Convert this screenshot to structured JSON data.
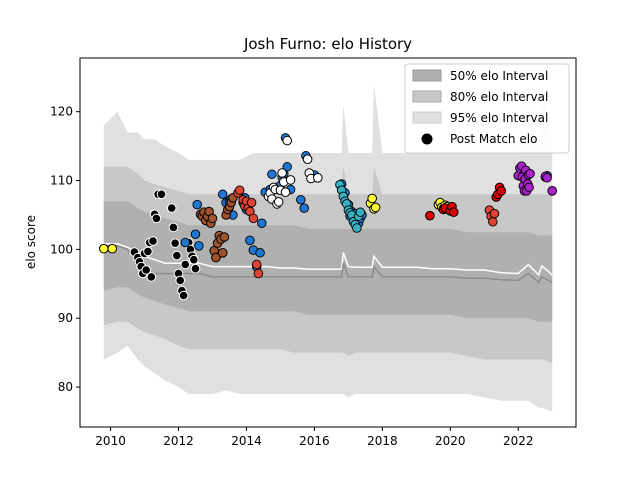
{
  "chart_data": {
    "type": "scatter",
    "title": "Josh Furno: elo History",
    "xlabel": "",
    "ylabel": "elo score",
    "xlim": [
      2009.1,
      2023.7
    ],
    "ylim": [
      74.2,
      127.8
    ],
    "x_ticks": [
      2010,
      2012,
      2014,
      2016,
      2018,
      2020,
      2022
    ],
    "y_ticks": [
      80,
      90,
      100,
      110,
      120
    ],
    "grid": false,
    "legend_position": "top-right",
    "legend": [
      {
        "label": "50% elo Interval",
        "kind": "band",
        "color": "#b0b0b0"
      },
      {
        "label": "80% elo Interval",
        "kind": "band",
        "color": "#c8c8c8"
      },
      {
        "label": "95% elo Interval",
        "kind": "band",
        "color": "#e0e0e0"
      },
      {
        "label": "Post Match elo",
        "kind": "marker",
        "color": "#000000"
      }
    ],
    "bands": {
      "x": [
        2009.8,
        2010.2,
        2010.5,
        2010.8,
        2011.0,
        2011.3,
        2011.6,
        2012.0,
        2012.3,
        2012.6,
        2013.0,
        2013.4,
        2013.8,
        2014.2,
        2014.6,
        2015.0,
        2015.4,
        2015.8,
        2016.2,
        2016.6,
        2016.8,
        2016.85,
        2017.0,
        2017.2,
        2017.4,
        2017.7,
        2017.75,
        2018.0,
        2018.5,
        2019.0,
        2019.5,
        2020.0,
        2020.5,
        2021.0,
        2021.5,
        2022.0,
        2022.3,
        2022.6,
        2022.7,
        2023.0
      ],
      "p95_lower": [
        84,
        85,
        86,
        84,
        83,
        82,
        81,
        80,
        79,
        79,
        79,
        79.5,
        79,
        79,
        79,
        79,
        79,
        79,
        79,
        79,
        79,
        79,
        78.5,
        79,
        79,
        79,
        79,
        79,
        79,
        79,
        79,
        79,
        79,
        78.5,
        78,
        78,
        78,
        77,
        77,
        76.5
      ],
      "p95_upper": [
        118,
        120,
        117,
        117,
        116,
        116,
        115,
        114,
        113,
        113,
        113,
        113,
        113,
        114,
        114,
        114,
        114,
        114,
        114,
        114,
        114,
        121,
        114,
        114,
        114,
        114,
        124,
        114,
        114,
        114,
        114,
        114,
        114,
        114,
        114,
        114,
        121,
        114,
        124,
        116
      ],
      "p80_lower": [
        89,
        89.5,
        89.5,
        88.5,
        88,
        87.5,
        87,
        86,
        85.5,
        85.5,
        85.5,
        85.5,
        85.5,
        85.5,
        85.5,
        85.5,
        85,
        85,
        85,
        85,
        85,
        85,
        84.5,
        85,
        85,
        85,
        85,
        85,
        85,
        85,
        85,
        85,
        84.5,
        84,
        84,
        84,
        84,
        84,
        84,
        83.5
      ],
      "p80_upper": [
        112,
        112,
        112,
        111,
        110,
        109.5,
        109,
        108.5,
        108,
        108,
        108,
        108,
        108,
        108,
        108,
        108,
        108,
        108,
        108,
        108,
        108,
        112,
        108,
        108,
        108,
        108,
        112,
        108,
        108,
        108,
        108,
        108,
        108,
        108,
        108,
        108,
        108,
        108,
        108,
        108
      ],
      "p50_lower": [
        94,
        94.5,
        94.5,
        93.5,
        93,
        92.5,
        92,
        91.5,
        91,
        91,
        91,
        91,
        91,
        91,
        91,
        91,
        91,
        90.5,
        90.5,
        90.5,
        90.5,
        90.5,
        90.5,
        90.5,
        90.5,
        90.5,
        90.5,
        90.5,
        90.5,
        90.5,
        90.5,
        90.5,
        90,
        90,
        90,
        90,
        90,
        89.5,
        89.5,
        89.5
      ],
      "p50_upper": [
        107,
        107,
        107,
        106,
        105.5,
        105,
        104.5,
        104,
        103.5,
        103.5,
        103.5,
        103.5,
        103.5,
        103.5,
        103.5,
        103.5,
        103.5,
        103,
        103,
        103,
        103,
        103,
        103,
        103,
        103,
        103,
        103,
        103,
        103,
        103,
        103,
        103,
        102.5,
        102.5,
        102.5,
        102.5,
        102.5,
        102,
        102,
        102
      ]
    },
    "lines": [
      {
        "color": "#ffffff",
        "width": 1.5,
        "x": [
          2009.8,
          2010.2,
          2010.5,
          2010.8,
          2011.0,
          2011.3,
          2011.6,
          2012.0,
          2012.3,
          2012.6,
          2013.0,
          2013.4,
          2013.8,
          2014.2,
          2014.6,
          2015.0,
          2015.4,
          2015.8,
          2016.2,
          2016.6,
          2016.8,
          2016.85,
          2017.0,
          2017.2,
          2017.4,
          2017.7,
          2017.75,
          2018.0,
          2018.5,
          2019.0,
          2019.5,
          2020.0,
          2020.5,
          2021.0,
          2021.5,
          2022.0,
          2022.3,
          2022.6,
          2022.7,
          2023.0
        ],
        "y": [
          100.8,
          100.8,
          100.3,
          99.5,
          99.0,
          98.5,
          98.0,
          98.0,
          98.0,
          98.0,
          97.5,
          97.5,
          97.5,
          97.5,
          97.5,
          97.3,
          97.3,
          97.1,
          97.1,
          97.1,
          97.1,
          99.5,
          97.5,
          97.4,
          97.4,
          97.4,
          99.0,
          97.4,
          97.4,
          97.4,
          97.2,
          97.2,
          97.0,
          97.0,
          96.6,
          96.5,
          97.8,
          96.3,
          97.6,
          96.3
        ]
      },
      {
        "color": "#8c8c8c",
        "width": 1.5,
        "x": [
          2009.8,
          2010.2,
          2010.5,
          2010.8,
          2011.0,
          2011.3,
          2011.6,
          2012.0,
          2012.3,
          2012.6,
          2013.0,
          2013.4,
          2013.8,
          2014.2,
          2014.6,
          2015.0,
          2015.4,
          2015.8,
          2016.2,
          2016.6,
          2016.8,
          2016.85,
          2017.0,
          2017.2,
          2017.4,
          2017.7,
          2017.75,
          2018.0,
          2018.5,
          2019.0,
          2019.5,
          2020.0,
          2020.5,
          2021.0,
          2021.5,
          2022.0,
          2022.3,
          2022.6,
          2022.7,
          2023.0
        ],
        "y": [
          100.5,
          100.5,
          100.0,
          98.0,
          97.0,
          96.5,
          96.5,
          96.5,
          96.5,
          96.5,
          96.0,
          96.0,
          96.0,
          96.0,
          96.0,
          96.0,
          96.0,
          96.0,
          96.0,
          96.0,
          96.0,
          98.0,
          96.0,
          96.0,
          96.0,
          96.0,
          97.5,
          96.0,
          96.0,
          96.0,
          96.0,
          96.0,
          95.8,
          95.8,
          95.6,
          95.5,
          96.5,
          95.2,
          96.0,
          95.2
        ]
      }
    ],
    "series": [
      {
        "fill": "#ffff33",
        "points": [
          [
            2009.8,
            100.1
          ],
          [
            2010.05,
            100.1
          ]
        ]
      },
      {
        "fill": "#000000",
        "points": [
          [
            2010.7,
            99.6
          ],
          [
            2010.8,
            98.8
          ],
          [
            2010.85,
            98.2
          ],
          [
            2010.9,
            97.5
          ],
          [
            2010.95,
            96.5
          ],
          [
            2011.0,
            99.4
          ],
          [
            2011.05,
            97.0
          ],
          [
            2011.1,
            99.7
          ],
          [
            2011.15,
            101.0
          ],
          [
            2011.2,
            96.0
          ],
          [
            2011.25,
            101.2
          ],
          [
            2011.3,
            105.1
          ],
          [
            2011.35,
            104.5
          ],
          [
            2011.4,
            108.0
          ],
          [
            2011.5,
            108.0
          ],
          [
            2011.8,
            106.0
          ],
          [
            2011.85,
            103.2
          ],
          [
            2011.9,
            100.9
          ],
          [
            2011.95,
            99.1
          ],
          [
            2012.0,
            96.5
          ],
          [
            2012.05,
            95.5
          ],
          [
            2012.1,
            94.0
          ],
          [
            2012.15,
            93.3
          ],
          [
            2012.2,
            97.8
          ],
          [
            2012.3,
            101.0
          ],
          [
            2012.35,
            100.0
          ],
          [
            2012.4,
            99.0
          ],
          [
            2012.45,
            98.5
          ],
          [
            2012.5,
            97.2
          ]
        ]
      },
      {
        "fill": "#1f77d4",
        "points": [
          [
            2012.2,
            101.0
          ],
          [
            2012.5,
            102.2
          ],
          [
            2012.55,
            106.5
          ],
          [
            2012.6,
            100.5
          ],
          [
            2013.3,
            108.0
          ],
          [
            2013.4,
            106.8
          ],
          [
            2013.5,
            107.0
          ],
          [
            2013.55,
            107.3
          ],
          [
            2013.6,
            105.0
          ],
          [
            2013.9,
            106.8
          ],
          [
            2013.95,
            107.5
          ],
          [
            2014.0,
            105.8
          ],
          [
            2014.05,
            106.2
          ],
          [
            2014.1,
            101.3
          ],
          [
            2014.2,
            99.9
          ],
          [
            2014.3,
            97.5
          ],
          [
            2014.4,
            99.5
          ],
          [
            2014.45,
            103.8
          ],
          [
            2014.55,
            108.3
          ],
          [
            2014.7,
            108.7
          ],
          [
            2014.75,
            110.9
          ],
          [
            2015.0,
            109.3
          ],
          [
            2015.05,
            110.5
          ],
          [
            2015.1,
            111.0
          ],
          [
            2015.15,
            116.2
          ],
          [
            2015.2,
            112.0
          ],
          [
            2015.3,
            108.7
          ],
          [
            2015.6,
            107.2
          ],
          [
            2015.7,
            106.0
          ],
          [
            2015.75,
            113.6
          ],
          [
            2016.0,
            110.8
          ],
          [
            2016.8,
            109.5
          ],
          [
            2016.9,
            108.2
          ],
          [
            2017.0,
            106.5
          ],
          [
            2017.05,
            104.8
          ],
          [
            2017.1,
            105.5
          ],
          [
            2017.15,
            104.0
          ],
          [
            2017.2,
            105.2
          ],
          [
            2017.3,
            103.8
          ],
          [
            2017.35,
            104.5
          ],
          [
            2017.4,
            105.0
          ],
          [
            2022.8,
            110.5
          ],
          [
            2022.85,
            110.7
          ],
          [
            2023.0,
            108.5
          ]
        ]
      },
      {
        "fill": "#a0522d",
        "points": [
          [
            2012.65,
            105.1
          ],
          [
            2012.7,
            104.8
          ],
          [
            2012.75,
            105.4
          ],
          [
            2012.8,
            104.2
          ],
          [
            2012.85,
            104.8
          ],
          [
            2012.9,
            105.5
          ],
          [
            2012.95,
            103.8
          ],
          [
            2013.0,
            104.5
          ],
          [
            2013.05,
            99.8
          ],
          [
            2013.1,
            98.8
          ],
          [
            2013.15,
            100.9
          ],
          [
            2013.2,
            102.0
          ],
          [
            2013.25,
            101.5
          ],
          [
            2013.3,
            99.5
          ],
          [
            2013.35,
            101.8
          ],
          [
            2013.4,
            105.0
          ],
          [
            2013.45,
            105.8
          ],
          [
            2013.5,
            106.2
          ],
          [
            2013.55,
            106.8
          ],
          [
            2013.6,
            107.5
          ]
        ]
      },
      {
        "fill": "#dd4433",
        "points": [
          [
            2013.75,
            108.2
          ],
          [
            2013.8,
            108.6
          ],
          [
            2013.9,
            107.2
          ],
          [
            2013.95,
            106.3
          ],
          [
            2014.0,
            107.0
          ],
          [
            2014.05,
            106.0
          ],
          [
            2014.1,
            105.5
          ],
          [
            2014.15,
            106.8
          ],
          [
            2014.2,
            104.5
          ],
          [
            2014.3,
            97.8
          ],
          [
            2014.35,
            96.5
          ],
          [
            2021.15,
            105.7
          ],
          [
            2021.2,
            104.8
          ],
          [
            2021.25,
            104.0
          ],
          [
            2021.3,
            105.2
          ]
        ]
      },
      {
        "fill": "#ffffff",
        "points": [
          [
            2014.65,
            107.7
          ],
          [
            2014.7,
            108.2
          ],
          [
            2014.75,
            107.3
          ],
          [
            2014.8,
            109.0
          ],
          [
            2014.85,
            108.7
          ],
          [
            2014.9,
            106.6
          ],
          [
            2014.95,
            106.9
          ],
          [
            2015.0,
            108.6
          ],
          [
            2015.05,
            111.1
          ],
          [
            2015.1,
            109.8
          ],
          [
            2015.15,
            108.3
          ],
          [
            2015.2,
            115.8
          ],
          [
            2015.3,
            110.1
          ],
          [
            2015.8,
            113.1
          ],
          [
            2015.85,
            111.1
          ],
          [
            2015.9,
            110.3
          ],
          [
            2016.1,
            110.4
          ]
        ]
      },
      {
        "fill": "#39b0c0",
        "points": [
          [
            2016.75,
            109.4
          ],
          [
            2016.8,
            108.6
          ],
          [
            2016.85,
            107.7
          ],
          [
            2016.9,
            107.0
          ],
          [
            2016.95,
            106.6
          ],
          [
            2017.0,
            105.7
          ],
          [
            2017.05,
            105.3
          ],
          [
            2017.1,
            105.0
          ],
          [
            2017.15,
            104.0
          ],
          [
            2017.2,
            103.6
          ],
          [
            2017.25,
            103.1
          ],
          [
            2017.3,
            104.8
          ],
          [
            2017.35,
            105.4
          ]
        ]
      },
      {
        "fill": "#ffff33",
        "points": [
          [
            2017.65,
            106.7
          ],
          [
            2017.7,
            107.4
          ],
          [
            2017.75,
            105.9
          ],
          [
            2017.8,
            106.1
          ],
          [
            2019.65,
            106.5
          ],
          [
            2019.7,
            106.8
          ],
          [
            2019.75,
            106.1
          ],
          [
            2019.8,
            105.9
          ],
          [
            2019.85,
            106.4
          ],
          [
            2019.9,
            106.2
          ]
        ]
      },
      {
        "fill": "#dd0000",
        "points": [
          [
            2019.4,
            104.9
          ],
          [
            2019.8,
            105.8
          ],
          [
            2019.85,
            106.0
          ],
          [
            2020.0,
            105.6
          ],
          [
            2020.05,
            106.2
          ],
          [
            2020.1,
            105.4
          ],
          [
            2021.35,
            107.6
          ],
          [
            2021.4,
            108.0
          ],
          [
            2021.45,
            109.0
          ],
          [
            2021.5,
            108.5
          ]
        ]
      },
      {
        "fill": "#aa22cc",
        "points": [
          [
            2022.0,
            110.7
          ],
          [
            2022.05,
            111.8
          ],
          [
            2022.1,
            112.1
          ],
          [
            2022.12,
            110.5
          ],
          [
            2022.15,
            109.2
          ],
          [
            2022.18,
            108.5
          ],
          [
            2022.2,
            110.2
          ],
          [
            2022.22,
            111.5
          ],
          [
            2022.25,
            108.5
          ],
          [
            2022.28,
            109.5
          ],
          [
            2022.3,
            110.8
          ],
          [
            2022.32,
            109.0
          ],
          [
            2022.35,
            111.0
          ],
          [
            2022.8,
            110.6
          ],
          [
            2022.85,
            110.4
          ],
          [
            2023.0,
            108.5
          ]
        ]
      }
    ]
  }
}
